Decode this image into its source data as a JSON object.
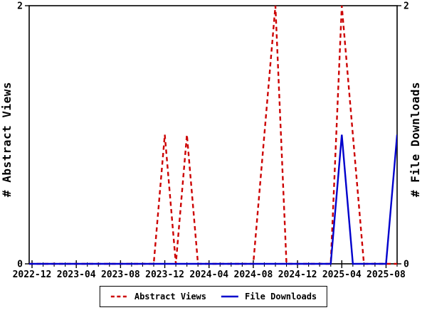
{
  "chart_data": {
    "type": "line",
    "title": "",
    "ylabel_left": "# Abstract Views",
    "ylabel_right": "# File Downloads",
    "ylim": [
      0,
      2
    ],
    "y_ticks": [
      0,
      2
    ],
    "y_tick_labels": [
      "0",
      "2"
    ],
    "grid": false,
    "legend_position": "bottom-center",
    "x_major_tick_every": 4,
    "x_tick_labels": [
      "2022-12",
      "2023-04",
      "2023-08",
      "2023-12",
      "2024-04",
      "2024-08",
      "2024-12",
      "2025-04",
      "2025-08"
    ],
    "x": [
      "2022-12",
      "2023-01",
      "2023-02",
      "2023-03",
      "2023-04",
      "2023-05",
      "2023-06",
      "2023-07",
      "2023-08",
      "2023-09",
      "2023-10",
      "2023-11",
      "2023-12",
      "2024-01",
      "2024-02",
      "2024-03",
      "2024-04",
      "2024-05",
      "2024-06",
      "2024-07",
      "2024-08",
      "2024-09",
      "2024-10",
      "2024-11",
      "2024-12",
      "2025-01",
      "2025-02",
      "2025-03",
      "2025-04",
      "2025-05",
      "2025-06",
      "2025-07",
      "2025-08",
      "2025-09"
    ],
    "series": [
      {
        "name": "Abstract Views",
        "axis": "left",
        "color": "#cc0000",
        "line_style": "dashed",
        "values": [
          0,
          0,
          0,
          0,
          0,
          0,
          0,
          0,
          0,
          0,
          0,
          0,
          1,
          0,
          1,
          0,
          0,
          0,
          0,
          0,
          0,
          1,
          2,
          0,
          0,
          0,
          0,
          0,
          2,
          1,
          0,
          0,
          0,
          0
        ]
      },
      {
        "name": "File Downloads",
        "axis": "right",
        "color": "#0000cc",
        "line_style": "solid",
        "values": [
          0,
          0,
          0,
          0,
          0,
          0,
          0,
          0,
          0,
          0,
          0,
          0,
          0,
          0,
          0,
          0,
          0,
          0,
          0,
          0,
          0,
          0,
          0,
          0,
          0,
          0,
          0,
          0,
          1,
          0,
          0,
          0,
          0,
          1
        ]
      }
    ]
  },
  "legend": {
    "items": [
      "Abstract Views",
      "File Downloads"
    ]
  }
}
